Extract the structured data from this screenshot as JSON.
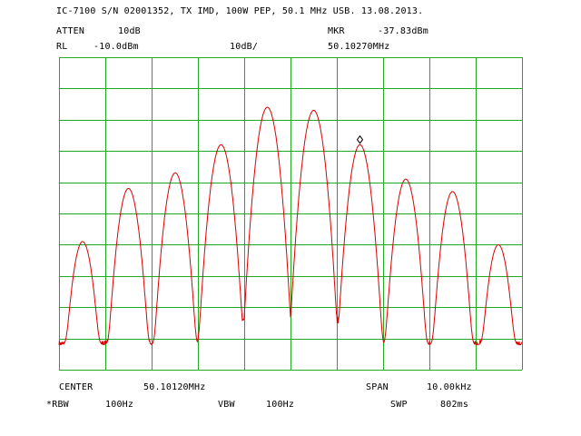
{
  "header": {
    "title": "IC-7100 S/N 02001352, TX IMD, 100W PEP, 50.1 MHz USB. 13.08.2013.",
    "atten_label": "ATTEN",
    "atten_value": "10dB",
    "mkr_label": "MKR",
    "mkr_value": "-37.83dBm",
    "rl_label": "RL",
    "rl_value": "-10.0dBm",
    "scale": "10dB/",
    "mkr_freq": "50.10270MHz"
  },
  "footer": {
    "center_label": "CENTER",
    "center_value": "50.10120MHz",
    "span_label": "SPAN",
    "span_value": "10.00kHz",
    "rbw_label": "*RBW",
    "rbw_value": "100Hz",
    "vbw_label": "VBW",
    "vbw_value": "100Hz",
    "swp_label": "SWP",
    "swp_value": "802ms"
  },
  "colors": {
    "grid": "#22aa22",
    "trace": "#dd0000",
    "marker": "#000000",
    "text": "#000000"
  },
  "chart_data": {
    "type": "line",
    "x_unit": "kHz offset from center",
    "y_unit": "dBm",
    "xlim": [
      -5,
      5
    ],
    "ylim": [
      -110,
      -10
    ],
    "grid": true,
    "x_divisions": 10,
    "y_divisions": 10,
    "noise_floor_dbm": -102,
    "peaks": [
      {
        "x": -4.49,
        "y": -69
      },
      {
        "x": -3.5,
        "y": -52
      },
      {
        "x": -2.49,
        "y": -47
      },
      {
        "x": -1.5,
        "y": -38
      },
      {
        "x": -0.5,
        "y": -26
      },
      {
        "x": 0.5,
        "y": -27
      },
      {
        "x": 1.5,
        "y": -38
      },
      {
        "x": 2.49,
        "y": -49
      },
      {
        "x": 3.5,
        "y": -53
      },
      {
        "x": 4.49,
        "y": -70
      }
    ],
    "marker": {
      "x": 1.5,
      "y": -37.83
    }
  }
}
